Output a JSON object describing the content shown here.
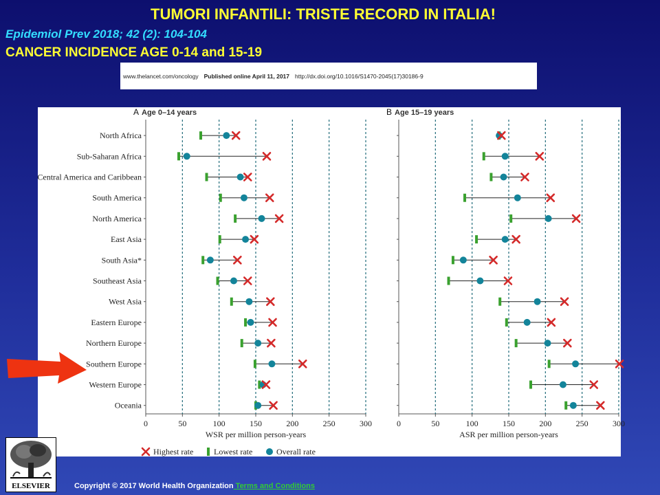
{
  "header": {
    "title": "TUMORI INFANTILI: TRISTE RECORD IN ITALIA!",
    "reference": "Epidemiol Prev 2018; 42 (2): 104-104",
    "incidence_line": "CANCER INCIDENCE  AGE 0-14  and 15-19"
  },
  "banner": {
    "site": "www.thelancet.com/oncology",
    "published": "Published online April 11, 2017",
    "doi": "http://dx.doi.org/10.1016/S1470-2045(17)30186-9"
  },
  "legend": {
    "highest": "Highest rate",
    "lowest": "Lowest rate",
    "overall": "Overall rate"
  },
  "colors": {
    "highest": "#d42a2a",
    "lowest": "#3aa12f",
    "overall": "#13849a",
    "title_yellow": "#ffff33",
    "reference_cyan": "#33ddff",
    "arrow": "#ee3311"
  },
  "footer": {
    "logo_text": "ELSEVIER",
    "copyright": "Copyright © 2017 World Health Organization",
    "terms": " Terms and Conditions"
  },
  "chart_data": [
    {
      "type": "range-dot",
      "panel": "A",
      "title": "Age 0–14 years",
      "xlabel": "WSR per million person-years",
      "xlim": [
        0,
        300
      ],
      "xticks": [
        0,
        50,
        100,
        150,
        200,
        250,
        300
      ],
      "grid": "vertical dashed",
      "categories": [
        "North Africa",
        "Sub-Saharan Africa",
        "Central America and Caribbean",
        "South America",
        "North America",
        "East Asia",
        "South Asia*",
        "Southeast Asia",
        "West Asia",
        "Eastern Europe",
        "Northern Europe",
        "Southern Europe",
        "Western Europe",
        "Oceania"
      ],
      "series": [
        {
          "name": "Lowest rate",
          "values": [
            75,
            45,
            83,
            102,
            122,
            101,
            78,
            98,
            117,
            136,
            131,
            149,
            155,
            150
          ]
        },
        {
          "name": "Overall rate",
          "values": [
            110,
            56,
            129,
            134,
            158,
            136,
            88,
            120,
            141,
            143,
            153,
            172,
            160,
            153
          ]
        },
        {
          "name": "Highest rate",
          "values": [
            123,
            165,
            139,
            169,
            182,
            148,
            125,
            139,
            170,
            173,
            171,
            214,
            164,
            174
          ]
        }
      ]
    },
    {
      "type": "range-dot",
      "panel": "B",
      "title": "Age 15–19 years",
      "xlabel": "ASR per million person-years",
      "xlim": [
        0,
        300
      ],
      "xticks": [
        0,
        50,
        100,
        150,
        200,
        250,
        300
      ],
      "grid": "vertical dashed",
      "categories": [
        "North Africa",
        "Sub-Saharan Africa",
        "Central America and Caribbean",
        "South America",
        "North America",
        "East Asia",
        "South Asia*",
        "Southeast Asia",
        "West Asia",
        "Eastern Europe",
        "Northern Europe",
        "Southern Europe",
        "Western Europe",
        "Oceania"
      ],
      "series": [
        {
          "name": "Lowest rate",
          "values": [
            137,
            116,
            126,
            90,
            153,
            106,
            74,
            68,
            138,
            147,
            160,
            205,
            180,
            228
          ]
        },
        {
          "name": "Overall rate",
          "values": [
            137,
            145,
            143,
            162,
            204,
            145,
            88,
            111,
            189,
            175,
            203,
            241,
            224,
            238
          ]
        },
        {
          "name": "Highest rate",
          "values": [
            140,
            192,
            172,
            207,
            242,
            160,
            129,
            149,
            226,
            208,
            230,
            301,
            266,
            275
          ]
        }
      ]
    }
  ]
}
